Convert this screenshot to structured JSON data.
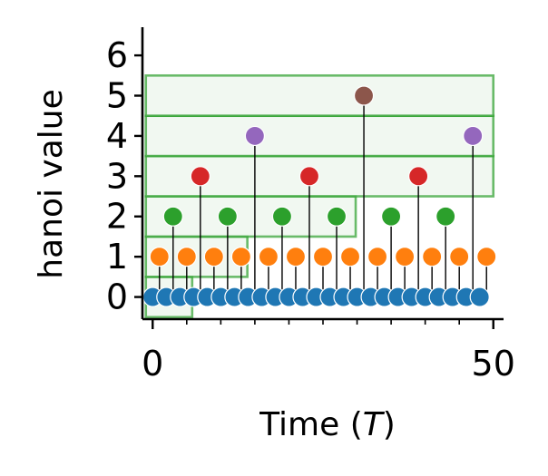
{
  "chart_data": {
    "type": "scatter",
    "xlabel_prefix": "Time (",
    "xlabel_var": "T",
    "xlabel_suffix": ")",
    "ylabel": "hanoi value",
    "xlim": [
      -1.5,
      51.5
    ],
    "ylim": [
      -0.55,
      6.7
    ],
    "xticks": [
      0,
      50
    ],
    "xminor_ticks": [
      5,
      10,
      15,
      20,
      25,
      30,
      35,
      40,
      45
    ],
    "yticks": [
      0,
      1,
      2,
      3,
      4,
      5,
      6
    ],
    "grid": false,
    "legend": "none",
    "point_colors": [
      "#1f77b4",
      "#ff7f0e",
      "#2ca02c",
      "#d62728",
      "#9467bd",
      "#8c564b"
    ],
    "stem_color": "#000000",
    "box_color": "#2ca02c",
    "box_fill": "#e6f2e6",
    "points": [
      {
        "t": 0,
        "v": 0
      },
      {
        "t": 1,
        "v": 1
      },
      {
        "t": 2,
        "v": 0
      },
      {
        "t": 3,
        "v": 2
      },
      {
        "t": 4,
        "v": 0
      },
      {
        "t": 5,
        "v": 1
      },
      {
        "t": 6,
        "v": 0
      },
      {
        "t": 7,
        "v": 3
      },
      {
        "t": 8,
        "v": 0
      },
      {
        "t": 9,
        "v": 1
      },
      {
        "t": 10,
        "v": 0
      },
      {
        "t": 11,
        "v": 2
      },
      {
        "t": 12,
        "v": 0
      },
      {
        "t": 13,
        "v": 1
      },
      {
        "t": 14,
        "v": 0
      },
      {
        "t": 15,
        "v": 4
      },
      {
        "t": 16,
        "v": 0
      },
      {
        "t": 17,
        "v": 1
      },
      {
        "t": 18,
        "v": 0
      },
      {
        "t": 19,
        "v": 2
      },
      {
        "t": 20,
        "v": 0
      },
      {
        "t": 21,
        "v": 1
      },
      {
        "t": 22,
        "v": 0
      },
      {
        "t": 23,
        "v": 3
      },
      {
        "t": 24,
        "v": 0
      },
      {
        "t": 25,
        "v": 1
      },
      {
        "t": 26,
        "v": 0
      },
      {
        "t": 27,
        "v": 2
      },
      {
        "t": 28,
        "v": 0
      },
      {
        "t": 29,
        "v": 1
      },
      {
        "t": 30,
        "v": 0
      },
      {
        "t": 31,
        "v": 5
      },
      {
        "t": 32,
        "v": 0
      },
      {
        "t": 33,
        "v": 1
      },
      {
        "t": 34,
        "v": 0
      },
      {
        "t": 35,
        "v": 2
      },
      {
        "t": 36,
        "v": 0
      },
      {
        "t": 37,
        "v": 1
      },
      {
        "t": 38,
        "v": 0
      },
      {
        "t": 39,
        "v": 3
      },
      {
        "t": 40,
        "v": 0
      },
      {
        "t": 41,
        "v": 1
      },
      {
        "t": 42,
        "v": 0
      },
      {
        "t": 43,
        "v": 2
      },
      {
        "t": 44,
        "v": 0
      },
      {
        "t": 45,
        "v": 1
      },
      {
        "t": 46,
        "v": 0
      },
      {
        "t": 47,
        "v": 4
      },
      {
        "t": 48,
        "v": 0
      },
      {
        "t": 49,
        "v": 1
      }
    ],
    "boxes": [
      {
        "t0": -1,
        "t1": 5.8,
        "v0": -0.5,
        "v1": 0.5
      },
      {
        "t0": -1,
        "t1": 13.9,
        "v0": 0.5,
        "v1": 1.5
      },
      {
        "t0": -1,
        "t1": 29.8,
        "v0": 1.5,
        "v1": 2.5
      },
      {
        "t0": -1,
        "t1": 50,
        "v0": 2.5,
        "v1": 3.5
      },
      {
        "t0": -1,
        "t1": 50,
        "v0": 3.5,
        "v1": 4.5
      },
      {
        "t0": -1,
        "t1": 50,
        "v0": 4.5,
        "v1": 5.5
      }
    ]
  }
}
